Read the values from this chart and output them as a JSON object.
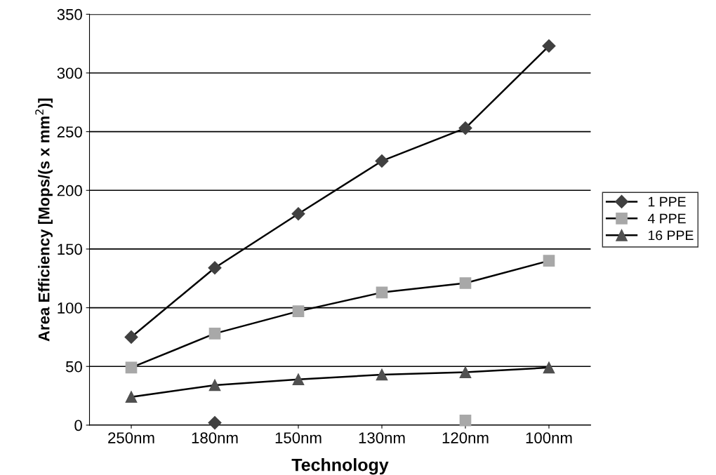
{
  "chart_data": {
    "type": "line",
    "xlabel": "Technology",
    "ylabel": "Area Efficiency [Mops/(s x mm$^{2}$)]",
    "categories": [
      "250nm",
      "180nm",
      "150nm",
      "130nm",
      "120nm",
      "100nm"
    ],
    "series": [
      {
        "name": "1 PPE",
        "color": "#404040",
        "marker": "diamond",
        "values": [
          75,
          134,
          180,
          225,
          253,
          323
        ]
      },
      {
        "name": "4 PPE",
        "color": "#a8a8a8",
        "marker": "square",
        "values": [
          49,
          78,
          97,
          113,
          121,
          140
        ]
      },
      {
        "name": "16 PPE",
        "color": "#505050",
        "marker": "triangle",
        "values": [
          24,
          34,
          39,
          43,
          45,
          49
        ]
      },
      {
        "type": "scatter",
        "color": "#404040",
        "marker": "diamond",
        "x": [
          "180nm"
        ],
        "values": [
          2
        ]
      },
      {
        "type": "scatter",
        "color": "#a8a8a8",
        "marker": "square",
        "x": [
          "120nm"
        ],
        "values": [
          4
        ]
      }
    ],
    "ylim": [
      0,
      350
    ],
    "yticks": [
      0,
      50,
      100,
      150,
      200,
      250,
      300,
      350
    ],
    "grid": "y",
    "legend": "right"
  }
}
